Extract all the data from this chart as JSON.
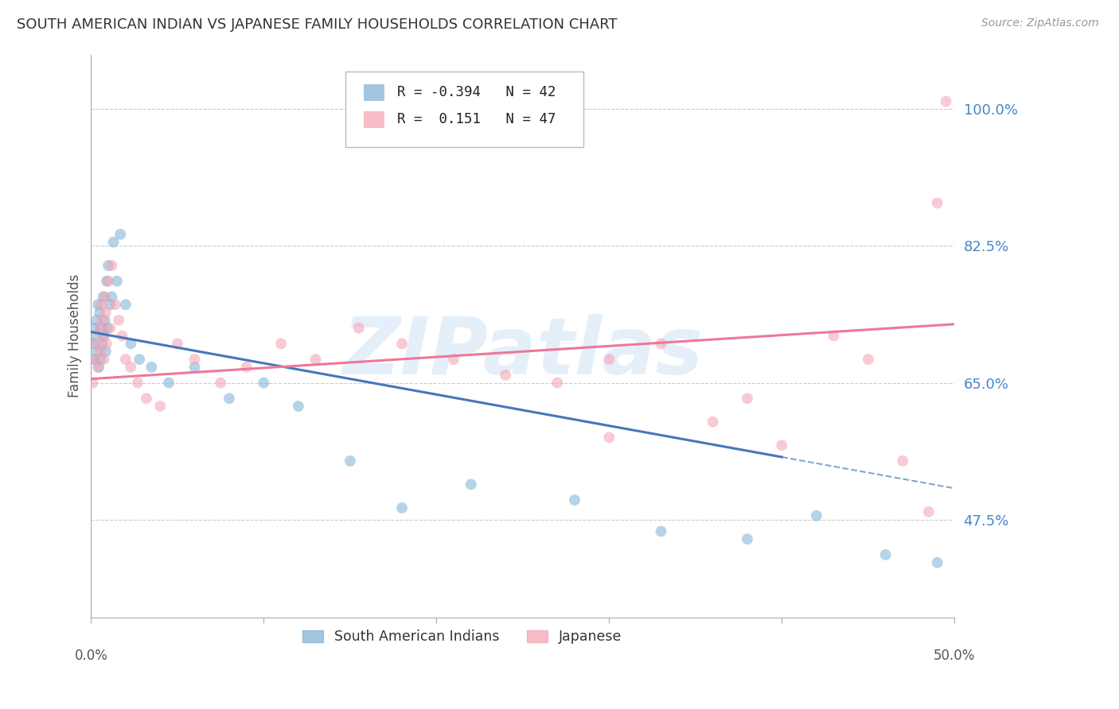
{
  "title": "SOUTH AMERICAN INDIAN VS JAPANESE FAMILY HOUSEHOLDS CORRELATION CHART",
  "source": "Source: ZipAtlas.com",
  "ylabel": "Family Households",
  "yticks": [
    47.5,
    65.0,
    82.5,
    100.0
  ],
  "ytick_labels": [
    "47.5%",
    "65.0%",
    "82.5%",
    "100.0%"
  ],
  "xmin": 0.0,
  "xmax": 50.0,
  "ymin": 35.0,
  "ymax": 107.0,
  "blue_R": -0.394,
  "blue_N": 42,
  "pink_R": 0.151,
  "pink_N": 47,
  "blue_color": "#7BAFD4",
  "pink_color": "#F4A0B0",
  "blue_line_color": "#4477BB",
  "pink_line_color": "#EE7799",
  "legend_label_blue": "South American Indians",
  "legend_label_pink": "Japanese",
  "watermark": "ZIPatlas",
  "watermark_color": "#AACCEE",
  "background_color": "#FFFFFF",
  "blue_scatter_x": [
    0.1,
    0.15,
    0.2,
    0.25,
    0.3,
    0.35,
    0.4,
    0.45,
    0.5,
    0.55,
    0.6,
    0.65,
    0.7,
    0.75,
    0.8,
    0.85,
    0.9,
    0.95,
    1.0,
    1.1,
    1.2,
    1.3,
    1.5,
    1.7,
    2.0,
    2.3,
    2.8,
    3.5,
    4.5,
    6.0,
    8.0,
    10.0,
    12.0,
    15.0,
    18.0,
    22.0,
    28.0,
    33.0,
    38.0,
    42.0,
    46.0,
    49.0
  ],
  "blue_scatter_y": [
    70.0,
    68.0,
    72.0,
    71.0,
    73.0,
    69.0,
    75.0,
    67.0,
    74.0,
    68.0,
    72.0,
    70.0,
    76.0,
    71.0,
    73.0,
    69.0,
    78.0,
    72.0,
    80.0,
    75.0,
    76.0,
    83.0,
    78.0,
    84.0,
    75.0,
    70.0,
    68.0,
    67.0,
    65.0,
    67.0,
    63.0,
    65.0,
    62.0,
    55.0,
    49.0,
    52.0,
    50.0,
    46.0,
    45.0,
    48.0,
    43.0,
    42.0
  ],
  "pink_scatter_x": [
    0.1,
    0.2,
    0.3,
    0.4,
    0.5,
    0.55,
    0.6,
    0.65,
    0.7,
    0.75,
    0.8,
    0.85,
    0.9,
    1.0,
    1.1,
    1.2,
    1.4,
    1.6,
    1.8,
    2.0,
    2.3,
    2.7,
    3.2,
    4.0,
    5.0,
    6.0,
    7.5,
    9.0,
    11.0,
    13.0,
    15.5,
    18.0,
    21.0,
    24.0,
    27.0,
    30.0,
    33.0,
    36.0,
    38.0,
    40.0,
    43.0,
    45.0,
    47.0,
    48.5,
    49.0,
    49.5,
    30.0
  ],
  "pink_scatter_y": [
    65.0,
    68.0,
    70.0,
    67.0,
    72.0,
    69.0,
    75.0,
    73.0,
    71.0,
    68.0,
    76.0,
    74.0,
    70.0,
    78.0,
    72.0,
    80.0,
    75.0,
    73.0,
    71.0,
    68.0,
    67.0,
    65.0,
    63.0,
    62.0,
    70.0,
    68.0,
    65.0,
    67.0,
    70.0,
    68.0,
    72.0,
    70.0,
    68.0,
    66.0,
    65.0,
    68.0,
    70.0,
    60.0,
    63.0,
    57.0,
    71.0,
    68.0,
    55.0,
    48.5,
    88.0,
    101.0,
    58.0
  ],
  "blue_line_x0": 0.0,
  "blue_line_y0": 71.5,
  "blue_line_x1": 40.0,
  "blue_line_y1": 55.5,
  "blue_dash_x0": 40.0,
  "blue_dash_y0": 55.5,
  "blue_dash_x1": 50.0,
  "blue_dash_y1": 51.5,
  "pink_line_x0": 0.0,
  "pink_line_y0": 65.5,
  "pink_line_x1": 50.0,
  "pink_line_y1": 72.5
}
